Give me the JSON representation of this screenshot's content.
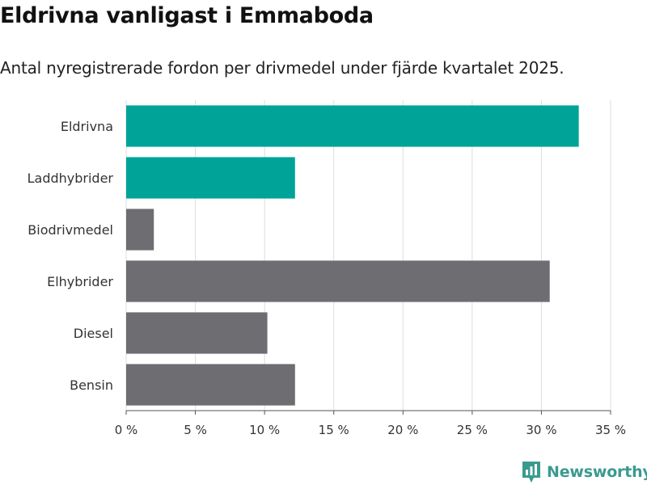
{
  "header": {
    "title": "Eldrivna vanligast i Emmaboda",
    "subtitle": "Antal nyregistrerade fordon per drivmedel under fjärde kvartalet 2025."
  },
  "chart_data": {
    "type": "bar",
    "orientation": "horizontal",
    "categories": [
      "Eldrivna",
      "Laddhybrider",
      "Biodrivmedel",
      "Elhybrider",
      "Diesel",
      "Bensin"
    ],
    "values": [
      32.7,
      12.2,
      2.0,
      30.6,
      10.2,
      12.2
    ],
    "highlight": [
      true,
      true,
      false,
      false,
      false,
      false
    ],
    "xlim": [
      0,
      35
    ],
    "ticks": [
      0,
      5,
      10,
      15,
      20,
      25,
      30,
      35
    ],
    "tick_labels": [
      "0 %",
      "5 %",
      "10 %",
      "15 %",
      "20 %",
      "25 %",
      "30 %",
      "35 %"
    ],
    "colors": {
      "highlight": "#00a398",
      "default": "#6e6d72",
      "grid": "#dddddd"
    },
    "grid": true
  },
  "branding": {
    "name": "Newsworthy",
    "color": "#3a9a8f"
  }
}
